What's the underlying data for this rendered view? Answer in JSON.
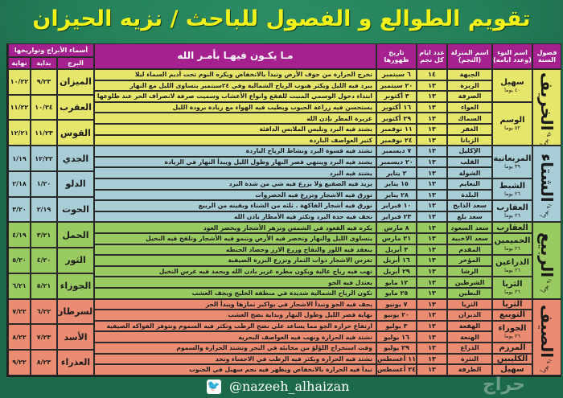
{
  "title": "تقويم الطوالع و الفصول للباحث / نزيه الحيزان",
  "colors": {
    "header": "#a4218f",
    "autumn": "#e6e66c",
    "winter": "#a9cdd6",
    "spring": "#9acb62",
    "summer": "#ea8c72",
    "title": "#f2f21a",
    "background": "#1d6a4a"
  },
  "headers": {
    "season": "فصول السنة",
    "naw": "اسم النوء (وعدد ايامه)",
    "manzila": "اسم المنزلة (النجم)",
    "days": "عدد ايام كل نجم",
    "date": "تاريخ ظهورها",
    "description": "مـا يكـون فيهـا بأمـر الله",
    "zodiac_group": "أسماء الأبراج وتواريخها",
    "zodiac": "البرج",
    "start": "بداية",
    "end": "نهاية"
  },
  "seasons": [
    {
      "name": "الخريف",
      "days": "٩٢ يوماً",
      "color": "autumn"
    },
    {
      "name": "الشتاء",
      "days": "٩١ يوماً",
      "color": "winter"
    },
    {
      "name": "الربيع",
      "days": "٩١ يوماً",
      "color": "spring"
    },
    {
      "name": "الصيف",
      "days": "٩١ يوماً",
      "color": "summer"
    }
  ],
  "anwa": [
    {
      "name": "سهيل",
      "days": "٤٠ يوما",
      "rows": 3
    },
    {
      "name": "الوسم",
      "days": "٥٢ يوما",
      "rows": 4
    },
    {
      "name": "المربعانية",
      "days": "٣٩ يوما",
      "rows": 3
    },
    {
      "name": "الشبط",
      "days": "٢٦ يوما",
      "rows": 2
    },
    {
      "name": "العقارب",
      "days": "٢٦ يوما",
      "rows": 2
    },
    {
      "name": "العقارب",
      "days": "",
      "rows": 1
    },
    {
      "name": "الحميمين",
      "days": "٢٦ يوما",
      "rows": 2
    },
    {
      "name": "الذراعين",
      "days": "٢٦ يوما",
      "rows": 2
    },
    {
      "name": "الثريا",
      "days": "٢٦ يوما",
      "rows": 2
    },
    {
      "name": "الثريا",
      "days": "",
      "rows": 1
    },
    {
      "name": "التويبع",
      "days": "",
      "rows": 1
    },
    {
      "name": "الجوزاء",
      "days": "٢٦ يوما",
      "rows": 2
    },
    {
      "name": "المرزم",
      "days": "",
      "rows": 1
    },
    {
      "name": "الكليبين",
      "days": "",
      "rows": 1
    },
    {
      "name": "سهيل",
      "days": "",
      "rows": 1
    }
  ],
  "rows": [
    {
      "manzila": "الجبهة",
      "days": "١٤",
      "date": "٦ سبتمبر",
      "desc": "تخرج الحرارة من جوف الأرض وتبدأ بالانخفاض ويكره النوم تحت أديم السماء ليلا"
    },
    {
      "manzila": "الزبرة",
      "days": "١٣",
      "date": "٢٠ سبتمبر",
      "desc": "يبرد فيه الليل ويكثر هبوب الرياح الشمالية وفي ٢٤سبتمبر يتساوى الليل مع النهار"
    },
    {
      "manzila": "الصرفة",
      "days": "١٣",
      "date": "٣ أكتوبر",
      "desc": "ابتداء دخول الوسمي المنبت للفقع وانواع الأعشاب وسميت صرفة لانصراف الحر عند طلوعها"
    },
    {
      "manzila": "العواء",
      "days": "١٣",
      "date": "١٦ أكتوبر",
      "desc": "يستحسن فيه زراعة الحبوب ويطيب فيه الهواء مع زيادة برودة الليل"
    },
    {
      "manzila": "السماك",
      "days": "١٣",
      "date": "٢٩ أكتوبر",
      "desc": "غزيرة المطر بإذن الله"
    },
    {
      "manzila": "الغفر",
      "days": "١٣",
      "date": "١١ نوفمبر",
      "desc": "يشتد فيه البرد وتلبس الملابس الدافئة"
    },
    {
      "manzila": "الزبانا",
      "days": "١٣",
      "date": "٢٤ نوفمبر",
      "desc": "كثير العواصف الباردة"
    },
    {
      "manzila": "الإكليل",
      "days": "١٣",
      "date": "٧ ديسمبر",
      "desc": "تشتد فيه قسوة البرد ونشاط الرياح الباردة"
    },
    {
      "manzila": "القلب",
      "days": "١٣",
      "date": "٢٠ ديسمبر",
      "desc": "يشتد فيه البرد وينتهي قصر النهار وطول الليل ويبدأ النهار في الزيادة"
    },
    {
      "manzila": "الشولة",
      "days": "١٣",
      "date": "٢ يناير",
      "desc": "يشتد فيه البرد"
    },
    {
      "manzila": "النعايم",
      "days": "١٣",
      "date": "١٥ يناير",
      "desc": "يزيد فيه الصقيع ولا يزرع فيه شي من شدة البرد"
    },
    {
      "manzila": "البلدة",
      "days": "١٣",
      "date": "٢٨ يناير",
      "desc": "تورق فيه الاشجار وتزرع فيه الخضروات"
    },
    {
      "manzila": "سعد الذابح",
      "days": "١٣",
      "date": "١٠ فبراير",
      "desc": "تورق فيه أشجار الفاكهة . ثلثه من الشتاء وبقيته من الربيع"
    },
    {
      "manzila": "سعد بلع",
      "days": "١٣",
      "date": "٢٣ فبراير",
      "desc": "تخف فيه حدة البرد وتكثر فيه الأمطار باذن الله"
    },
    {
      "manzila": "سعد السعود",
      "days": "١٣",
      "date": "٨ مارس",
      "desc": "يكره فيه القعود في الشمس وتزهر الأشجار ويخضر العود"
    },
    {
      "manzila": "سعد الاخبية",
      "days": "١٣",
      "date": "٢١ مارس",
      "desc": "يتساوى الليل والنهار وتخضر فيه الأرض وتنمو فيه الأشجار وتلقح فيه النخيل"
    },
    {
      "manzila": "المقدم",
      "days": "١٣",
      "date": "٣ أبريل",
      "desc": "ينعقد فيه اللوز والتفاح وزرع الارز وحصاد الحنطه"
    },
    {
      "manzila": "المؤخر",
      "days": "١٣",
      "date": "١٦ أبريل",
      "desc": "تغرس الاشجار ذوات الثمار وتزرع البزرة الصيفية"
    },
    {
      "manzila": "الرشا",
      "days": "١٣",
      "date": "٢٩ أبريل",
      "desc": "تهب فيه رياح عالية ويكون مطره غزير باذن الله ويحمد فيه غرس النخيل"
    },
    {
      "manzila": "الشرطين",
      "days": "١٣",
      "date": "١٢ مايو",
      "desc": "يعتدل فيه الجو"
    },
    {
      "manzila": "البطين",
      "days": "١٣",
      "date": "٢٥ مايو",
      "desc": "تكون الرياح الشمالية شديدة في منطقة الخليج ويجف العشب"
    },
    {
      "manzila": "الثريا",
      "days": "١٣",
      "date": "٧ يونيو",
      "desc": "يجف فيه الجو وتبدأ الاشجار في بواكير ثمارها ويبدأ الحر"
    },
    {
      "manzila": "الدبران",
      "days": "١٣",
      "date": "٢٠ يونيو",
      "desc": "نهاية قصر الليل وطول النهار وبداية نضج العشب"
    },
    {
      "manzila": "الهقعة",
      "days": "١٣",
      "date": "٣ يوليو",
      "desc": "ارتفاع حرارة الجو مما يساعد على نضج الرطب وتكثر فيه السموم وتتوفر الفواكه الصيفية"
    },
    {
      "manzila": "الهنعة",
      "days": "١٣",
      "date": "١٦ يوليو",
      "desc": "تشتد فيه الحرارة وتهب فيه العواصف البحرية"
    },
    {
      "manzila": "الذراع",
      "days": "١٣",
      "date": "٢٩ يوليو",
      "desc": "وقت استخراج اللؤلؤ من مخابئه في البحر وتشتد الحرارة والسموم"
    },
    {
      "manzila": "النثرة",
      "days": "١٣",
      "date": "١١ أغسطس",
      "desc": "تشتد فيه الحرارة ويكثر فيه الرطب في الاحساء ونجد"
    },
    {
      "manzila": "الطرفة",
      "days": "١٣",
      "date": "٢٤ أغسطس",
      "desc": "تبدأ فيه الحرارة بالانخفاض ويظهر فيه نجم سهيل في الجنوب"
    }
  ],
  "zodiac": [
    {
      "name": "الميزان",
      "start": "٩/٢٣",
      "end": "١٠/٢٢"
    },
    {
      "name": "العقرب",
      "start": "١٠/٢٤",
      "end": "١١/٢٢"
    },
    {
      "name": "القوس",
      "start": "١١/٢٣",
      "end": "١٢/٢١"
    },
    {
      "name": "الجدي",
      "start": "١٢/٢٢",
      "end": "١/١٩"
    },
    {
      "name": "الدلو",
      "start": "١/٢٠",
      "end": "٢/١٨"
    },
    {
      "name": "الحوت",
      "start": "٢/١٩",
      "end": "٣/٢٠"
    },
    {
      "name": "الحمل",
      "start": "٣/٢١",
      "end": "٤/١٩"
    },
    {
      "name": "الثور",
      "start": "٤/٢٠",
      "end": "٥/٢٠"
    },
    {
      "name": "الجوزاء",
      "start": "٥/٢١",
      "end": "٦/٢١"
    },
    {
      "name": "السرطان",
      "start": "٦/٢٢",
      "end": "٧/٢٢"
    },
    {
      "name": "الأسد",
      "start": "٧/٢٣",
      "end": "٨/٢٢"
    },
    {
      "name": "العذراء",
      "start": "٨/٢٣",
      "end": "٩/٢٢"
    }
  ],
  "footer": {
    "handle": "@nazeeh_alhaizan",
    "icon": "twitter-icon",
    "watermark": "حراج"
  }
}
